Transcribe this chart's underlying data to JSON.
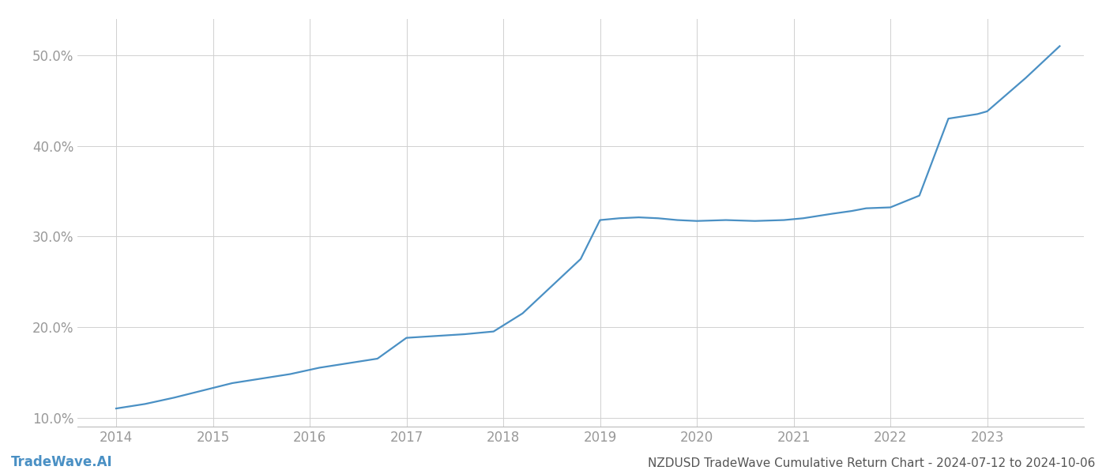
{
  "title": "NZDUSD TradeWave Cumulative Return Chart - 2024-07-12 to 2024-10-06",
  "watermark": "TradeWave.AI",
  "line_color": "#4a90c4",
  "background_color": "#ffffff",
  "grid_color": "#d0d0d0",
  "x_values": [
    2014.0,
    2014.3,
    2014.6,
    2014.9,
    2015.2,
    2015.5,
    2015.8,
    2016.1,
    2016.4,
    2016.7,
    2017.0,
    2017.3,
    2017.6,
    2017.9,
    2018.2,
    2018.5,
    2018.8,
    2019.0,
    2019.2,
    2019.4,
    2019.6,
    2019.8,
    2020.0,
    2020.3,
    2020.6,
    2020.9,
    2021.1,
    2021.4,
    2021.6,
    2021.75,
    2022.0,
    2022.3,
    2022.6,
    2022.9,
    2023.0,
    2023.4,
    2023.75
  ],
  "y_values": [
    11.0,
    11.5,
    12.2,
    13.0,
    13.8,
    14.3,
    14.8,
    15.5,
    16.0,
    16.5,
    18.8,
    19.0,
    19.2,
    19.5,
    21.5,
    24.5,
    27.5,
    31.8,
    32.0,
    32.1,
    32.0,
    31.8,
    31.7,
    31.8,
    31.7,
    31.8,
    32.0,
    32.5,
    32.8,
    33.1,
    33.2,
    34.5,
    43.0,
    43.5,
    43.8,
    47.5,
    51.0
  ],
  "xlim": [
    2013.6,
    2024.0
  ],
  "ylim": [
    9.0,
    54.0
  ],
  "xticks": [
    2014,
    2015,
    2016,
    2017,
    2018,
    2019,
    2020,
    2021,
    2022,
    2023
  ],
  "yticks": [
    10.0,
    20.0,
    30.0,
    40.0,
    50.0
  ],
  "tick_label_color": "#999999",
  "tick_fontsize": 12,
  "footer_fontsize": 11,
  "watermark_fontsize": 12,
  "line_width": 1.6
}
